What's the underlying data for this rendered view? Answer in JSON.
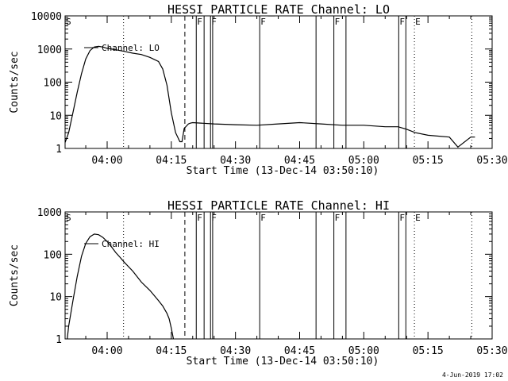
{
  "chart_data": [
    {
      "type": "line",
      "title": "HESSI PARTICLE_RATE Channel: LO",
      "xlabel": "Start Time (13-Dec-14 03:50:10)",
      "ylabel": "Counts/sec",
      "y_scale": "log",
      "ylim": [
        1,
        10000
      ],
      "xlim": [
        "03:50:10",
        "05:30:00"
      ],
      "x_ticks": [
        "04:00",
        "04:15",
        "04:30",
        "04:45",
        "05:00",
        "05:15",
        "05:30"
      ],
      "y_ticks": [
        "1",
        "10",
        "100",
        "1000",
        "10000"
      ],
      "legend": {
        "position": "top-left",
        "entries": [
          "Channel: LO"
        ]
      },
      "series": [
        {
          "name": "Channel: LO",
          "x": [
            "03:50:10",
            "03:51:00",
            "03:52:00",
            "03:53:00",
            "03:54:00",
            "03:55:00",
            "03:56:00",
            "03:57:00",
            "03:58:00",
            "03:59:00",
            "04:00:00",
            "04:02:00",
            "04:04:00",
            "04:06:00",
            "04:08:00",
            "04:10:00",
            "04:12:00",
            "04:13:00",
            "04:14:00",
            "04:15:00",
            "04:16:00",
            "04:17:00",
            "04:17:30",
            "04:18:00",
            "04:19:00",
            "04:19:30",
            "04:20:00",
            "04:25:00",
            "04:30:00",
            "04:35:00",
            "04:40:00",
            "04:45:00",
            "04:50:00",
            "04:55:00",
            "05:00:00",
            "05:05:00",
            "05:08:00",
            "05:10:00",
            "05:12:00",
            "05:15:00",
            "05:20:00",
            "05:22:00",
            "05:25:00",
            "05:26:00"
          ],
          "y": [
            1.5,
            3,
            12,
            50,
            180,
            500,
            900,
            1150,
            1200,
            1150,
            1050,
            950,
            850,
            750,
            680,
            560,
            420,
            250,
            80,
            12,
            3,
            1.6,
            1.6,
            4,
            5.5,
            5.8,
            6,
            5.5,
            5.2,
            5,
            5.5,
            6,
            5.5,
            5,
            5,
            4.5,
            4.5,
            3.8,
            3,
            2.5,
            2.2,
            1.1,
            2.2,
            2.2
          ]
        }
      ],
      "vlines": {
        "dashed": [
          "04:18:10"
        ],
        "dotted": [
          "04:03:50",
          "05:11:50",
          "05:25:15"
        ],
        "solid": [
          "04:20:50",
          "04:22:40",
          "04:24:10",
          "04:24:40",
          "04:35:40",
          "04:48:50",
          "04:53:00",
          "04:55:50",
          "05:08:10",
          "05:09:50"
        ]
      },
      "flags": [
        {
          "label": "S",
          "at": "03:50:10"
        },
        {
          "label": "F",
          "at": "04:20:50"
        },
        {
          "label": "F",
          "at": "04:24:10"
        },
        {
          "label": "F",
          "at": "04:35:40"
        },
        {
          "label": "F",
          "at": "04:53:00"
        },
        {
          "label": "F",
          "at": "05:08:10"
        },
        {
          "label": "E",
          "at": "05:11:50"
        }
      ]
    },
    {
      "type": "line",
      "title": "HESSI PARTICLE_RATE Channel: HI",
      "xlabel": "Start Time (13-Dec-14 03:50:10)",
      "ylabel": "Counts/sec",
      "y_scale": "log",
      "ylim": [
        1,
        1000
      ],
      "xlim": [
        "03:50:10",
        "05:30:00"
      ],
      "x_ticks": [
        "04:00",
        "04:15",
        "04:30",
        "04:45",
        "05:00",
        "05:15",
        "05:30"
      ],
      "y_ticks": [
        "1",
        "10",
        "100",
        "1000"
      ],
      "legend": {
        "position": "top-left",
        "entries": [
          "Channel: HI"
        ]
      },
      "series": [
        {
          "name": "Channel: HI",
          "x": [
            "03:50:40",
            "03:51:00",
            "03:52:00",
            "03:53:00",
            "03:54:00",
            "03:55:00",
            "03:56:00",
            "03:57:00",
            "03:58:00",
            "03:59:00",
            "04:00:00",
            "04:01:00",
            "04:02:00",
            "04:03:00",
            "04:04:00",
            "04:06:00",
            "04:08:00",
            "04:10:00",
            "04:12:00",
            "04:13:00",
            "04:14:00",
            "04:14:30",
            "04:15:00",
            "04:15:30"
          ],
          "y": [
            1,
            2,
            8,
            30,
            90,
            180,
            260,
            300,
            290,
            250,
            200,
            150,
            110,
            85,
            65,
            40,
            22,
            14,
            8,
            6,
            4,
            3,
            1.8,
            1
          ]
        }
      ],
      "vlines": {
        "dashed": [
          "04:18:10"
        ],
        "dotted": [
          "04:03:50",
          "05:11:50",
          "05:25:15"
        ],
        "solid": [
          "04:20:50",
          "04:22:40",
          "04:24:10",
          "04:24:40",
          "04:35:40",
          "04:48:50",
          "04:53:00",
          "04:55:50",
          "05:08:10",
          "05:09:50"
        ]
      },
      "flags": [
        {
          "label": "S",
          "at": "03:50:10"
        },
        {
          "label": "F",
          "at": "04:20:50"
        },
        {
          "label": "F",
          "at": "04:24:10"
        },
        {
          "label": "F",
          "at": "04:35:40"
        },
        {
          "label": "F",
          "at": "04:53:00"
        },
        {
          "label": "F",
          "at": "05:08:10"
        },
        {
          "label": "E",
          "at": "05:11:50"
        }
      ]
    }
  ],
  "footer": {
    "timestamp": "4-Jun-2019 17:02"
  }
}
